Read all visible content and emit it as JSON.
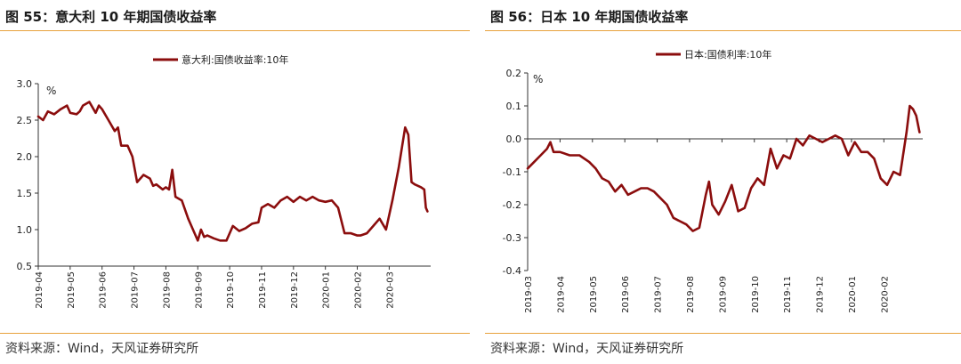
{
  "panels": [
    {
      "title": "图 55：意大利 10 年期国债收益率",
      "source": "资料来源：Wind，天风证券研究所"
    },
    {
      "title": "图 56：日本 10 年期国债收益率",
      "source": "资料来源：Wind，天风证券研究所"
    }
  ],
  "chart_data": [
    {
      "type": "line",
      "title": "",
      "ylabel": "%",
      "ylim": [
        0.5,
        3.0
      ],
      "yticks": [
        "0.5",
        "1.0",
        "1.5",
        "2.0",
        "2.5",
        "3.0"
      ],
      "xticks": [
        "2019-04",
        "2019-05",
        "2019-06",
        "2019-07",
        "2019-08",
        "2019-09",
        "2019-10",
        "2019-11",
        "2019-12",
        "2020-01",
        "2020-02",
        "2020-03"
      ],
      "xrange": [
        0,
        12.3
      ],
      "legend": "top-center",
      "color": "#8b0d0d",
      "series": [
        {
          "name": "意大利:国债收益率:10年",
          "x": [
            0,
            0.15,
            0.3,
            0.5,
            0.7,
            0.9,
            1.0,
            1.2,
            1.3,
            1.4,
            1.6,
            1.8,
            1.9,
            2.0,
            2.2,
            2.4,
            2.5,
            2.6,
            2.8,
            2.95,
            3.1,
            3.3,
            3.5,
            3.6,
            3.7,
            3.9,
            4.0,
            4.1,
            4.2,
            4.3,
            4.5,
            4.7,
            4.8,
            4.9,
            5.0,
            5.1,
            5.2,
            5.3,
            5.5,
            5.7,
            5.9,
            6.1,
            6.3,
            6.5,
            6.7,
            6.9,
            7.0,
            7.2,
            7.4,
            7.6,
            7.8,
            8.0,
            8.2,
            8.4,
            8.6,
            8.8,
            9.0,
            9.2,
            9.4,
            9.6,
            9.8,
            10.0,
            10.1,
            10.3,
            10.5,
            10.7,
            10.9,
            11.1,
            11.3,
            11.5,
            11.6,
            11.7,
            11.8,
            11.9,
            12.0,
            12.1,
            12.15,
            12.2
          ],
          "values": [
            2.55,
            2.5,
            2.62,
            2.58,
            2.65,
            2.7,
            2.6,
            2.58,
            2.62,
            2.7,
            2.75,
            2.6,
            2.7,
            2.65,
            2.5,
            2.35,
            2.4,
            2.15,
            2.15,
            2.0,
            1.65,
            1.75,
            1.7,
            1.6,
            1.62,
            1.55,
            1.58,
            1.55,
            1.82,
            1.45,
            1.4,
            1.15,
            1.05,
            0.95,
            0.85,
            1.0,
            0.9,
            0.92,
            0.88,
            0.85,
            0.85,
            1.05,
            0.98,
            1.02,
            1.08,
            1.1,
            1.3,
            1.35,
            1.3,
            1.4,
            1.45,
            1.38,
            1.45,
            1.4,
            1.45,
            1.4,
            1.38,
            1.4,
            1.3,
            0.95,
            0.95,
            0.92,
            0.92,
            0.95,
            1.05,
            1.15,
            1.0,
            1.4,
            1.85,
            2.4,
            2.3,
            1.65,
            1.62,
            1.6,
            1.58,
            1.55,
            1.3,
            1.25
          ]
        }
      ]
    },
    {
      "type": "line",
      "title": "",
      "ylabel": "%",
      "ylim": [
        -0.4,
        0.2
      ],
      "yticks": [
        "-0.4",
        "-0.3",
        "-0.2",
        "-0.1",
        "0.0",
        "0.1",
        "0.2"
      ],
      "xticks": [
        "2019-03",
        "2019-04",
        "2019-05",
        "2019-06",
        "2019-07",
        "2019-08",
        "2019-09",
        "2019-10",
        "2019-11",
        "2019-12",
        "2020-01",
        "2020-02"
      ],
      "xrange": [
        0,
        12.2
      ],
      "legend": "top-center",
      "color": "#8b0d0d",
      "series": [
        {
          "name": "日本:国债利率:10年",
          "x": [
            0,
            0.2,
            0.4,
            0.6,
            0.7,
            0.8,
            1.0,
            1.3,
            1.6,
            1.9,
            2.1,
            2.3,
            2.5,
            2.7,
            2.9,
            3.1,
            3.3,
            3.5,
            3.7,
            3.9,
            4.1,
            4.3,
            4.5,
            4.7,
            4.9,
            5.1,
            5.3,
            5.5,
            5.6,
            5.7,
            5.9,
            6.1,
            6.3,
            6.5,
            6.7,
            6.9,
            7.1,
            7.3,
            7.5,
            7.7,
            7.9,
            8.1,
            8.3,
            8.5,
            8.7,
            8.9,
            9.1,
            9.3,
            9.5,
            9.7,
            9.9,
            10.1,
            10.3,
            10.5,
            10.7,
            10.9,
            11.1,
            11.3,
            11.5,
            11.7,
            11.8,
            11.9,
            12.0,
            12.1
          ],
          "values": [
            -0.09,
            -0.07,
            -0.05,
            -0.03,
            -0.01,
            -0.04,
            -0.04,
            -0.05,
            -0.05,
            -0.07,
            -0.09,
            -0.12,
            -0.13,
            -0.16,
            -0.14,
            -0.17,
            -0.16,
            -0.15,
            -0.15,
            -0.16,
            -0.18,
            -0.2,
            -0.24,
            -0.25,
            -0.26,
            -0.28,
            -0.27,
            -0.17,
            -0.13,
            -0.2,
            -0.23,
            -0.19,
            -0.14,
            -0.22,
            -0.21,
            -0.15,
            -0.12,
            -0.14,
            -0.03,
            -0.09,
            -0.05,
            -0.06,
            0.0,
            -0.02,
            0.01,
            0.0,
            -0.01,
            0.0,
            0.01,
            0.0,
            -0.05,
            -0.01,
            -0.04,
            -0.04,
            -0.06,
            -0.12,
            -0.14,
            -0.1,
            -0.11,
            0.02,
            0.1,
            0.09,
            0.07,
            0.02
          ]
        }
      ]
    }
  ]
}
